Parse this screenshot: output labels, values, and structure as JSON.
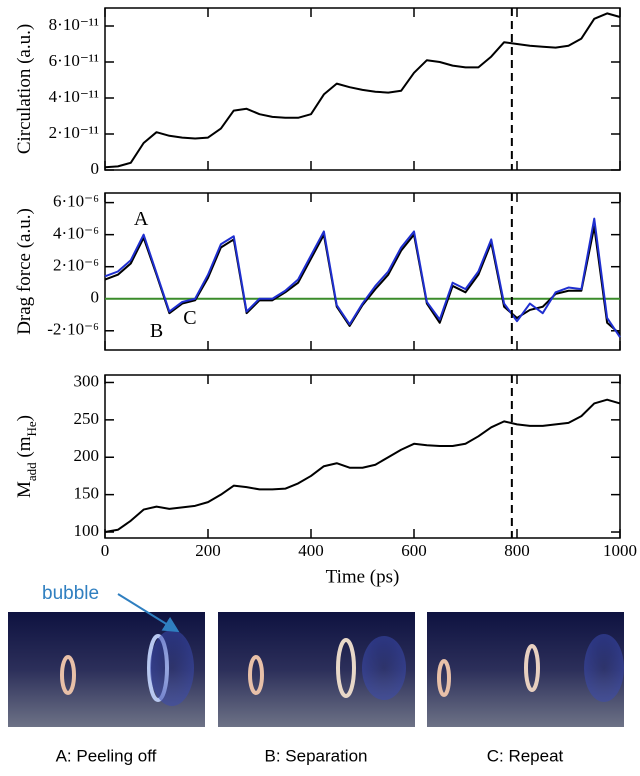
{
  "chart_data": [
    {
      "type": "line",
      "ylabel": [
        "Circulation (a.u.)"
      ],
      "x": [
        0,
        25,
        50,
        75,
        100,
        125,
        150,
        175,
        200,
        225,
        250,
        275,
        300,
        325,
        350,
        375,
        400,
        425,
        450,
        475,
        500,
        525,
        550,
        575,
        600,
        625,
        650,
        675,
        700,
        725,
        750,
        775,
        800,
        825,
        850,
        875,
        900,
        925,
        950,
        975,
        1000
      ],
      "xlim": [
        0,
        1000
      ],
      "xticks": [
        0,
        200,
        400,
        600,
        800,
        1000
      ],
      "ylim": [
        0,
        9e-11
      ],
      "yticks": [
        0,
        {
          "value": 2e-11,
          "label": "2·10⁻¹¹"
        },
        {
          "value": 4e-11,
          "label": "4·10⁻¹¹"
        },
        {
          "value": 6e-11,
          "label": "6·10⁻¹¹"
        },
        {
          "value": 8e-11,
          "label": "8·10⁻¹¹"
        }
      ],
      "vline": 790,
      "series": [
        {
          "color": "#000000",
          "values": [
            1.5e-12,
            2e-12,
            4e-12,
            1.5e-11,
            2.1e-11,
            1.9e-11,
            1.8e-11,
            1.75e-11,
            1.8e-11,
            2.3e-11,
            3.3e-11,
            3.4e-11,
            3.1e-11,
            2.95e-11,
            2.9e-11,
            2.9e-11,
            3.1e-11,
            4.2e-11,
            4.8e-11,
            4.6e-11,
            4.45e-11,
            4.35e-11,
            4.3e-11,
            4.4e-11,
            5.4e-11,
            6.1e-11,
            6e-11,
            5.8e-11,
            5.7e-11,
            5.7e-11,
            6.3e-11,
            7.1e-11,
            7e-11,
            6.9e-11,
            6.85e-11,
            6.8e-11,
            6.9e-11,
            7.3e-11,
            8.4e-11,
            8.7e-11,
            8.5e-11
          ]
        }
      ]
    },
    {
      "type": "line",
      "ylabel": [
        "Drag force (a.u.)"
      ],
      "x": [
        0,
        25,
        50,
        75,
        100,
        125,
        150,
        175,
        200,
        225,
        250,
        275,
        300,
        325,
        350,
        375,
        400,
        425,
        450,
        475,
        500,
        525,
        550,
        575,
        600,
        625,
        650,
        675,
        700,
        725,
        750,
        775,
        800,
        825,
        850,
        875,
        900,
        925,
        950,
        975,
        1000
      ],
      "xlim": [
        0,
        1000
      ],
      "xticks": [
        0,
        200,
        400,
        600,
        800,
        1000
      ],
      "ylim": [
        -3.2e-06,
        6.6e-06
      ],
      "yticks": [
        {
          "value": -2e-06,
          "label": "-2·10⁻⁶"
        },
        0,
        {
          "value": 2e-06,
          "label": "2·10⁻⁶"
        },
        {
          "value": 4e-06,
          "label": "4·10⁻⁶"
        },
        {
          "value": 6e-06,
          "label": "6·10⁻⁶"
        }
      ],
      "vline": 790,
      "hline": {
        "value": 0,
        "color": "#3a8c2a"
      },
      "annotations": [
        {
          "text": "A",
          "x": 70,
          "y": 4.9e-06
        },
        {
          "text": "B",
          "x": 100,
          "y": -2.1e-06
        },
        {
          "text": "C",
          "x": 165,
          "y": -1.3e-06
        }
      ],
      "series": [
        {
          "color": "#000000",
          "values": [
            1.2e-06,
            1.5e-06,
            2.2e-06,
            3.8e-06,
            1.5e-06,
            -9e-07,
            -3e-07,
            -1e-07,
            1.3e-06,
            3.2e-06,
            3.7e-06,
            -9e-07,
            -1e-07,
            -1e-07,
            4e-07,
            1e-06,
            2.5e-06,
            4e-06,
            -5e-07,
            -1.7e-06,
            -4e-07,
            6e-07,
            1.5e-06,
            3e-06,
            4e-06,
            -3e-07,
            -1.5e-06,
            8e-07,
            4e-07,
            1.5e-06,
            3.5e-06,
            -5e-07,
            -1.2e-06,
            -7e-07,
            -5e-07,
            3e-07,
            5e-07,
            5e-07,
            4.5e-06,
            -1.5e-06,
            -2.2e-06
          ]
        },
        {
          "color": "#1f2fd0",
          "values": [
            1.4e-06,
            1.7e-06,
            2.4e-06,
            4e-06,
            1.6e-06,
            -8e-07,
            -2e-07,
            0,
            1.5e-06,
            3.4e-06,
            3.9e-06,
            -8e-07,
            0,
            0,
            5e-07,
            1.2e-06,
            2.7e-06,
            4.2e-06,
            -4e-07,
            -1.6e-06,
            -3e-07,
            8e-07,
            1.7e-06,
            3.2e-06,
            4.2e-06,
            -2e-07,
            -1.3e-06,
            1e-06,
            6e-07,
            1.7e-06,
            3.7e-06,
            -3e-07,
            -1.4e-06,
            -3e-07,
            -9e-07,
            4e-07,
            7e-07,
            6e-07,
            5e-06,
            -1.2e-06,
            -2.4e-06
          ]
        }
      ]
    },
    {
      "type": "line",
      "ylabel": [
        "M",
        "add",
        " (m",
        "He",
        ")"
      ],
      "xlabel": "Time (ps)",
      "x": [
        0,
        25,
        50,
        75,
        100,
        125,
        150,
        175,
        200,
        225,
        250,
        275,
        300,
        325,
        350,
        375,
        400,
        425,
        450,
        475,
        500,
        525,
        550,
        575,
        600,
        625,
        650,
        675,
        700,
        725,
        750,
        775,
        800,
        825,
        850,
        875,
        900,
        925,
        950,
        975,
        1000
      ],
      "xlim": [
        0,
        1000
      ],
      "xticks": [
        0,
        200,
        400,
        600,
        800,
        1000
      ],
      "ylim": [
        92,
        310
      ],
      "yticks": [
        100,
        150,
        200,
        250,
        300
      ],
      "vline": 790,
      "series": [
        {
          "color": "#000000",
          "values": [
            100,
            103,
            115,
            130,
            134,
            131,
            133,
            135,
            140,
            150,
            162,
            160,
            157,
            157,
            158,
            165,
            175,
            188,
            192,
            186,
            186,
            190,
            200,
            210,
            218,
            216,
            215,
            215,
            218,
            228,
            240,
            248,
            244,
            242,
            242,
            244,
            246,
            255,
            272,
            277,
            272
          ]
        }
      ]
    }
  ],
  "images": {
    "callout": "bubble",
    "captions": [
      "A: Peeling off",
      "B: Separation",
      "C: Repeat"
    ]
  }
}
